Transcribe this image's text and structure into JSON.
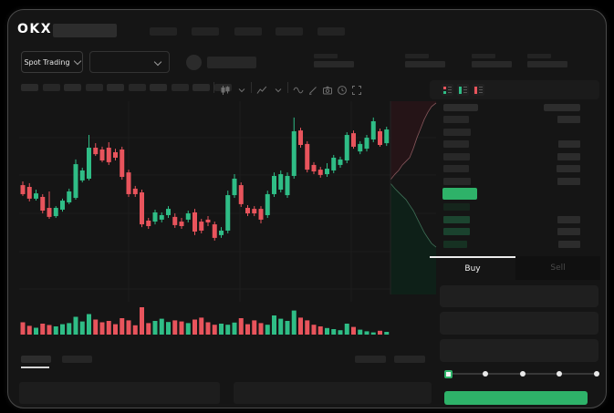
{
  "brand": {
    "logo_text": "OKX"
  },
  "header": {
    "nav_placeholder_count": 5
  },
  "subheader": {
    "market_type_dropdown": {
      "label": "Spot Trading"
    },
    "pair_dropdown": {
      "selected": ""
    },
    "stat_placeholder_count": 4
  },
  "toolbar": {
    "interval_placeholder_count": 10,
    "icons": [
      "candle-style",
      "chevron-down",
      "indicators",
      "chevron-down",
      "line-tool",
      "draw-tool",
      "camera",
      "clock",
      "fullscreen"
    ]
  },
  "order_book": {
    "view_modes": [
      "combined-book",
      "bids-book",
      "asks-book"
    ],
    "asks": [
      [
        28,
        25
      ],
      [
        30,
        0
      ],
      [
        28,
        24
      ],
      [
        29,
        25
      ],
      [
        28,
        26
      ],
      [
        30,
        25
      ]
    ],
    "last_price_bar_width": 38,
    "bids": [
      [
        29,
        0
      ],
      [
        29,
        25
      ],
      [
        29,
        25
      ],
      [
        26,
        24
      ]
    ],
    "bid_bar_colors": [
      "#15251c",
      "#1c4530",
      "#1a422e",
      "#163122"
    ]
  },
  "trade_form": {
    "tabs": [
      {
        "label": "Buy",
        "active": true
      },
      {
        "label": "Sell",
        "active": false
      }
    ],
    "field_count": 3,
    "slider": {
      "stops": 5,
      "active_stop": 0
    },
    "submit_label": ""
  },
  "colors": {
    "up": "#2fbd86",
    "down": "#e8545c",
    "accent_green": "#2eb269",
    "grid": "#1d1d1d",
    "depth_ask_fill": "#251417",
    "depth_ask_line": "#86565b",
    "depth_bid_fill": "#0e2018",
    "depth_bid_line": "#3f7057"
  },
  "chart_data": {
    "type": "candlestick+volume+depth",
    "title": "",
    "ylim": [
      0,
      100
    ],
    "gridlines_y": [
      83.7,
      64.7,
      45.1,
      25.6,
      6.5
    ],
    "candles": [
      [
        59.5,
        61.4,
        54.0,
        54.9
      ],
      [
        58.6,
        60.5,
        51.2,
        52.6
      ],
      [
        52.6,
        57.2,
        51.6,
        55.3
      ],
      [
        53.5,
        54.9,
        45.1,
        46.5
      ],
      [
        47.9,
        56.3,
        42.3,
        43.3
      ],
      [
        43.7,
        48.8,
        42.8,
        47.9
      ],
      [
        47.0,
        52.6,
        46.0,
        51.6
      ],
      [
        50.7,
        57.7,
        49.8,
        56.3
      ],
      [
        53.0,
        72.6,
        52.1,
        70.2
      ],
      [
        61.9,
        68.4,
        60.9,
        67.0
      ],
      [
        62.8,
        85.1,
        61.9,
        78.6
      ],
      [
        78.6,
        80.9,
        74.4,
        75.3
      ],
      [
        77.7,
        79.1,
        71.2,
        72.1
      ],
      [
        78.6,
        81.4,
        69.8,
        71.2
      ],
      [
        76.3,
        78.1,
        72.1,
        73.5
      ],
      [
        77.7,
        79.1,
        62.3,
        63.7
      ],
      [
        66.0,
        67.4,
        53.5,
        54.9
      ],
      [
        57.7,
        59.1,
        53.5,
        54.9
      ],
      [
        55.8,
        57.2,
        38.1,
        39.5
      ],
      [
        41.4,
        42.8,
        37.2,
        38.6
      ],
      [
        40.9,
        47.0,
        39.5,
        45.6
      ],
      [
        41.9,
        45.6,
        40.5,
        44.2
      ],
      [
        44.2,
        48.8,
        42.8,
        47.4
      ],
      [
        43.3,
        45.1,
        37.7,
        39.1
      ],
      [
        40.9,
        42.8,
        37.2,
        38.6
      ],
      [
        41.9,
        46.5,
        40.5,
        45.1
      ],
      [
        45.6,
        47.4,
        34.0,
        35.8
      ],
      [
        40.9,
        42.3,
        34.9,
        36.3
      ],
      [
        41.9,
        43.7,
        38.6,
        40.5
      ],
      [
        39.5,
        40.9,
        31.2,
        32.6
      ],
      [
        34.0,
        38.1,
        32.6,
        36.3
      ],
      [
        36.3,
        56.7,
        34.9,
        54.4
      ],
      [
        54.4,
        65.1,
        53.0,
        62.8
      ],
      [
        59.5,
        60.9,
        48.4,
        49.8
      ],
      [
        47.9,
        49.3,
        43.7,
        45.1
      ],
      [
        47.4,
        48.8,
        43.7,
        45.1
      ],
      [
        47.4,
        48.8,
        40.0,
        41.9
      ],
      [
        44.2,
        56.7,
        42.8,
        54.9
      ],
      [
        54.9,
        66.0,
        53.5,
        64.2
      ],
      [
        57.2,
        67.0,
        55.8,
        65.1
      ],
      [
        54.4,
        66.0,
        53.0,
        64.2
      ],
      [
        64.2,
        94.0,
        62.8,
        87.0
      ],
      [
        87.4,
        88.8,
        78.6,
        80.0
      ],
      [
        80.5,
        81.9,
        66.0,
        67.4
      ],
      [
        69.8,
        71.2,
        65.1,
        66.5
      ],
      [
        67.4,
        68.8,
        63.3,
        64.7
      ],
      [
        65.1,
        70.7,
        63.7,
        67.9
      ],
      [
        67.0,
        74.9,
        65.6,
        73.5
      ],
      [
        69.8,
        74.0,
        68.4,
        72.6
      ],
      [
        72.1,
        86.5,
        70.7,
        85.1
      ],
      [
        86.0,
        87.4,
        78.1,
        79.1
      ],
      [
        76.7,
        81.9,
        75.3,
        80.5
      ],
      [
        78.1,
        85.1,
        76.7,
        83.7
      ],
      [
        82.8,
        94.0,
        81.4,
        92.1
      ],
      [
        87.0,
        88.4,
        79.1,
        80.0
      ],
      [
        80.9,
        89.3,
        79.5,
        87.9
      ]
    ],
    "volume_max": 100,
    "volume": [
      45,
      32,
      25,
      40,
      35,
      30,
      38,
      42,
      65,
      48,
      75,
      55,
      45,
      50,
      38,
      60,
      52,
      34,
      100,
      42,
      50,
      58,
      46,
      52,
      48,
      42,
      55,
      62,
      45,
      36,
      40,
      36,
      44,
      60,
      38,
      52,
      42,
      36,
      70,
      58,
      50,
      88,
      62,
      52,
      36,
      30,
      24,
      20,
      16,
      40,
      28,
      18,
      12,
      8,
      14,
      10
    ],
    "depth": {
      "asks": [
        [
          0,
          40.6
        ],
        [
          10,
          37.7
        ],
        [
          18,
          35.8
        ],
        [
          26,
          33.0
        ],
        [
          34,
          31.1
        ],
        [
          42,
          29.2
        ],
        [
          50,
          24.5
        ],
        [
          58,
          18.9
        ],
        [
          66,
          14.2
        ],
        [
          74,
          9.4
        ],
        [
          82,
          5.7
        ],
        [
          90,
          2.8
        ],
        [
          100,
          0.9
        ]
      ],
      "bids": [
        [
          0,
          42.5
        ],
        [
          10,
          45.3
        ],
        [
          18,
          47.2
        ],
        [
          26,
          49.1
        ],
        [
          34,
          50.9
        ],
        [
          42,
          53.8
        ],
        [
          50,
          56.6
        ],
        [
          58,
          60.4
        ],
        [
          66,
          64.2
        ],
        [
          74,
          67.9
        ],
        [
          82,
          70.8
        ],
        [
          90,
          73.6
        ],
        [
          100,
          75.5
        ]
      ]
    }
  }
}
